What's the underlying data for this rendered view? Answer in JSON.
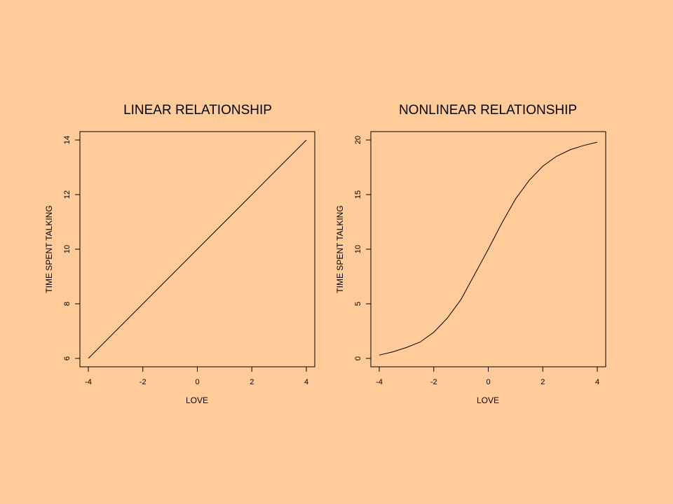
{
  "page": {
    "background": "#FFCC99",
    "ink": "#000000"
  },
  "chart_data": [
    {
      "type": "line",
      "title": "LINEAR RELATIONSHIP",
      "xlabel": "LOVE",
      "ylabel": "TIME SPENT TALKING",
      "xlim": [
        -4,
        4
      ],
      "ylim": [
        6,
        14
      ],
      "xticks": [
        -4,
        -2,
        0,
        2,
        4
      ],
      "yticks": [
        6,
        8,
        10,
        12,
        14
      ],
      "grid": false,
      "series": [
        {
          "x": [
            -4,
            -3,
            -2,
            -1,
            0,
            1,
            2,
            3,
            4
          ],
          "y": [
            6,
            7,
            8,
            9,
            10,
            11,
            12,
            13,
            14
          ]
        }
      ]
    },
    {
      "type": "line",
      "title": "NONLINEAR RELATIONSHIP",
      "xlabel": "LOVE",
      "ylabel": "TIME SPENT TALKING",
      "xlim": [
        -4,
        4
      ],
      "ylim": [
        0,
        20
      ],
      "xticks": [
        -4,
        -2,
        0,
        2,
        4
      ],
      "yticks": [
        0,
        5,
        10,
        15,
        20
      ],
      "grid": false,
      "series": [
        {
          "x": [
            -4,
            -3.5,
            -3,
            -2.5,
            -2,
            -1.5,
            -1,
            -0.5,
            0,
            0.5,
            1,
            1.5,
            2,
            2.5,
            3,
            3.5,
            4
          ],
          "y": [
            0.3,
            0.6,
            1.0,
            1.5,
            2.4,
            3.7,
            5.4,
            7.7,
            10.0,
            12.4,
            14.6,
            16.3,
            17.6,
            18.5,
            19.1,
            19.5,
            19.8
          ]
        }
      ]
    }
  ]
}
